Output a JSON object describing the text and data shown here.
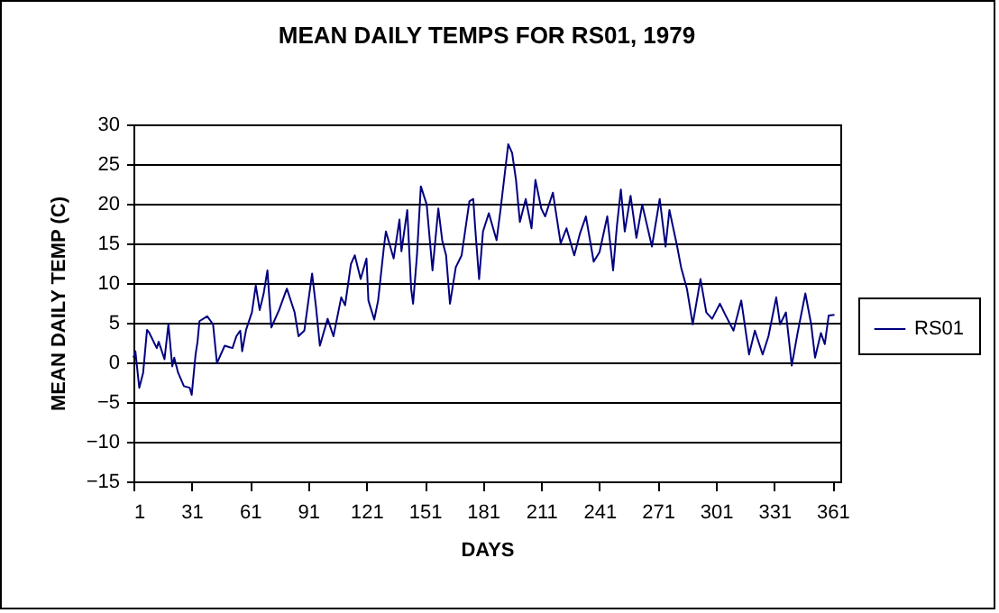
{
  "chart_data": {
    "type": "line",
    "title": "MEAN DAILY TEMPS FOR RS01, 1979",
    "xlabel": "DAYS",
    "ylabel": "MEAN DAILY TEMP (C)",
    "x": [
      1,
      2,
      4,
      6,
      8,
      9,
      13,
      14,
      17,
      19,
      21,
      22,
      24,
      27,
      30,
      31,
      33,
      34,
      35,
      39,
      42,
      44,
      48,
      52,
      54,
      56,
      57,
      59,
      62,
      64,
      66,
      68,
      70,
      72,
      76,
      80,
      84,
      86,
      89,
      93,
      95,
      97,
      101,
      104,
      108,
      110,
      113,
      115,
      118,
      121,
      122,
      125,
      127,
      130,
      131,
      135,
      138,
      139,
      142,
      144,
      145,
      147,
      149,
      152,
      155,
      158,
      160,
      162,
      164,
      167,
      170,
      174,
      176,
      177,
      179,
      181,
      184,
      188,
      190,
      194,
      196,
      198,
      200,
      203,
      206,
      208,
      211,
      213,
      217,
      221,
      224,
      228,
      231,
      234,
      238,
      241,
      245,
      248,
      250,
      252,
      254,
      257,
      260,
      263,
      268,
      272,
      275,
      277,
      281,
      283,
      286,
      289,
      293,
      296,
      299,
      303,
      306,
      310,
      314,
      318,
      321,
      325,
      328,
      332,
      334,
      337,
      340,
      343,
      347,
      350,
      352,
      355,
      357,
      359,
      362
    ],
    "series": [
      {
        "name": "RS01",
        "color": "#000080",
        "values": [
          0.6,
          1.4,
          -3.2,
          -1.3,
          4.1,
          3.8,
          1.8,
          2.6,
          0.4,
          4.8,
          -0.5,
          0.6,
          -1.3,
          -3,
          -3.2,
          -4.1,
          1,
          2.6,
          5.2,
          5.8,
          4.8,
          -0.1,
          2.1,
          1.8,
          3.3,
          4,
          1.4,
          4.1,
          6.3,
          9.7,
          6.6,
          8.6,
          11.6,
          4.4,
          6.6,
          9.3,
          6.3,
          3.3,
          4,
          11.2,
          7,
          2.1,
          5.5,
          3.3,
          8.2,
          7.2,
          12.4,
          13.5,
          10.5,
          13.1,
          7.8,
          5.4,
          7.8,
          14.6,
          16.5,
          13.1,
          18,
          14,
          19.2,
          9.3,
          7.4,
          13.5,
          22.2,
          19.9,
          11.6,
          19.4,
          15.4,
          13.5,
          7.4,
          12,
          13.5,
          20.3,
          20.6,
          16.9,
          10.5,
          16.5,
          18.8,
          15.4,
          19.2,
          27.5,
          26.4,
          23,
          17.7,
          20.6,
          16.9,
          23,
          19.4,
          18.4,
          21.4,
          15,
          16.9,
          13.5,
          16.3,
          18.4,
          12.7,
          13.9,
          18.4,
          11.6,
          17.3,
          21.8,
          16.5,
          21,
          15.7,
          19.9,
          14.6,
          20.6,
          14.6,
          19.2,
          14.6,
          12,
          9.3,
          4.8,
          10.5,
          6.3,
          5.5,
          7.4,
          5.9,
          4,
          7.8,
          1,
          4,
          1,
          3.3,
          8.2,
          4.8,
          6.3,
          -0.4,
          3.7,
          8.7,
          4.8,
          0.6,
          3.7,
          2.3,
          5.9,
          6
        ]
      }
    ],
    "xlim": [
      1,
      365
    ],
    "xticks": [
      1,
      31,
      61,
      91,
      121,
      151,
      181,
      211,
      241,
      271,
      301,
      331,
      361
    ],
    "ylim": [
      -15,
      30
    ],
    "yticks": [
      -15,
      -10,
      -5,
      0,
      5,
      10,
      15,
      20,
      25,
      30
    ],
    "grid": "y",
    "legend": "right"
  }
}
